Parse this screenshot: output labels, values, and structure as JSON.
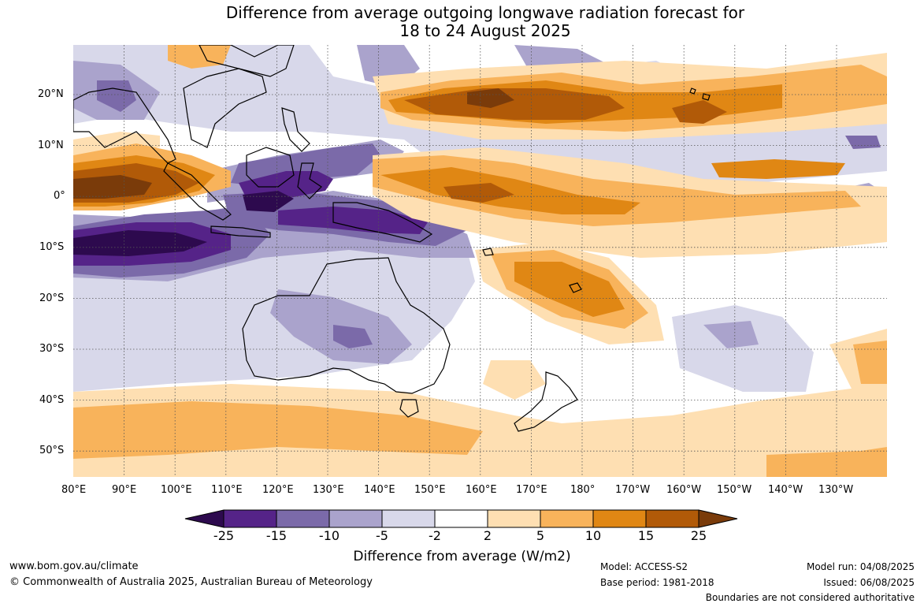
{
  "title_line1": "Difference from average outgoing longwave radiation forecast for",
  "title_line2": "18 to 24 August 2025",
  "lon_labels": [
    "80°E",
    "90°E",
    "100°E",
    "110°E",
    "120°E",
    "130°E",
    "140°E",
    "150°E",
    "160°E",
    "170°E",
    "180°",
    "170°W",
    "160°W",
    "150°W",
    "140°W",
    "130°W"
  ],
  "lat_labels": [
    "20°N",
    "10°N",
    "0°",
    "10°S",
    "20°S",
    "30°S",
    "40°S",
    "50°S"
  ],
  "colorbar": {
    "ticks": [
      "-25",
      "-15",
      "-10",
      "-5",
      "-2",
      "2",
      "5",
      "10",
      "15",
      "25"
    ],
    "colors": [
      "#2d0a4e",
      "#552388",
      "#7b6aa9",
      "#aaa3cc",
      "#d8d8ea",
      "#ffffff",
      "#fedfb2",
      "#f8b35b",
      "#e08714",
      "#b15a08",
      "#7a3b0a"
    ],
    "title": "Difference from average (W/m2)"
  },
  "palette": {
    "land_outline": "#000000",
    "grid": "#555555"
  },
  "footer": {
    "website": "www.bom.gov.au/climate",
    "copyright": "© Commonwealth of Australia 2025, Australian Bureau of Meteorology",
    "model": "Model: ACCESS-S2",
    "base_period": "Base period: 1981-2018",
    "model_run": "Model run: 04/08/2025",
    "issued": "Issued: 06/08/2025",
    "boundaries": "Boundaries are not considered authoritative"
  }
}
